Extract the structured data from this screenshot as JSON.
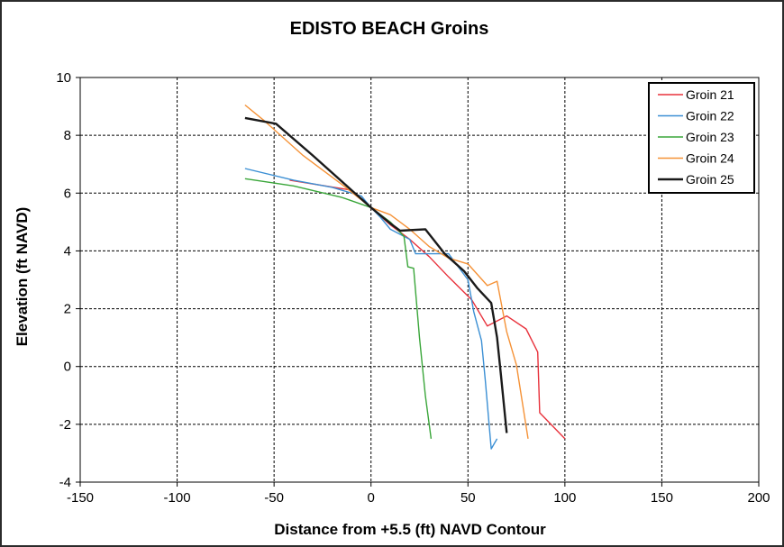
{
  "chart_data": {
    "type": "line",
    "title": "EDISTO BEACH Groins",
    "xlabel": "Distance from +5.5 (ft) NAVD Contour",
    "ylabel": "Elevation (ft NAVD)",
    "xlim": [
      -150,
      200
    ],
    "ylim": [
      -4,
      10
    ],
    "xticks": [
      -150,
      -100,
      -50,
      0,
      50,
      100,
      150,
      200
    ],
    "yticks": [
      -4,
      -2,
      0,
      2,
      4,
      6,
      8,
      10
    ],
    "grid": true,
    "legend_position": "top-right",
    "series": [
      {
        "name": "Groin 21",
        "color": "#e8323c",
        "points": [
          [
            -42,
            6.45
          ],
          [
            -10,
            6.1
          ],
          [
            0,
            5.5
          ],
          [
            10,
            4.9
          ],
          [
            20,
            4.4
          ],
          [
            30,
            3.8
          ],
          [
            40,
            3.1
          ],
          [
            52,
            2.3
          ],
          [
            60,
            1.4
          ],
          [
            70,
            1.75
          ],
          [
            80,
            1.3
          ],
          [
            86,
            0.5
          ],
          [
            87,
            -1.6
          ],
          [
            100,
            -2.5
          ]
        ]
      },
      {
        "name": "Groin 22",
        "color": "#3b8fd4",
        "points": [
          [
            -65,
            6.85
          ],
          [
            -40,
            6.45
          ],
          [
            -20,
            6.2
          ],
          [
            -5,
            5.9
          ],
          [
            0,
            5.5
          ],
          [
            5,
            5.15
          ],
          [
            10,
            4.75
          ],
          [
            20,
            4.4
          ],
          [
            23,
            3.9
          ],
          [
            30,
            3.9
          ],
          [
            40,
            3.9
          ],
          [
            50,
            3.0
          ],
          [
            53,
            1.9
          ],
          [
            57,
            0.9
          ],
          [
            59,
            -0.5
          ],
          [
            62,
            -2.85
          ],
          [
            65,
            -2.5
          ]
        ]
      },
      {
        "name": "Groin 23",
        "color": "#3aa63a",
        "points": [
          [
            -65,
            6.5
          ],
          [
            -40,
            6.25
          ],
          [
            -15,
            5.85
          ],
          [
            0,
            5.5
          ],
          [
            10,
            5.0
          ],
          [
            17,
            4.5
          ],
          [
            19,
            3.45
          ],
          [
            22,
            3.4
          ],
          [
            25,
            1.0
          ],
          [
            28,
            -1.0
          ],
          [
            31,
            -2.5
          ]
        ]
      },
      {
        "name": "Groin 24",
        "color": "#f59237",
        "points": [
          [
            -65,
            9.05
          ],
          [
            -55,
            8.5
          ],
          [
            -35,
            7.3
          ],
          [
            -15,
            6.3
          ],
          [
            0,
            5.5
          ],
          [
            10,
            5.25
          ],
          [
            20,
            4.75
          ],
          [
            30,
            4.15
          ],
          [
            40,
            3.75
          ],
          [
            50,
            3.55
          ],
          [
            60,
            2.8
          ],
          [
            65,
            2.95
          ],
          [
            70,
            1.2
          ],
          [
            75,
            0.05
          ],
          [
            81,
            -2.5
          ]
        ]
      },
      {
        "name": "Groin 25",
        "color": "#1a1a1a",
        "points": [
          [
            -65,
            8.6
          ],
          [
            -49,
            8.4
          ],
          [
            -30,
            7.3
          ],
          [
            -10,
            6.1
          ],
          [
            0,
            5.5
          ],
          [
            10,
            4.95
          ],
          [
            15,
            4.7
          ],
          [
            28,
            4.75
          ],
          [
            38,
            3.9
          ],
          [
            48,
            3.3
          ],
          [
            55,
            2.7
          ],
          [
            62,
            2.2
          ],
          [
            65,
            1.0
          ],
          [
            67,
            -0.3
          ],
          [
            70,
            -2.3
          ]
        ]
      }
    ]
  }
}
